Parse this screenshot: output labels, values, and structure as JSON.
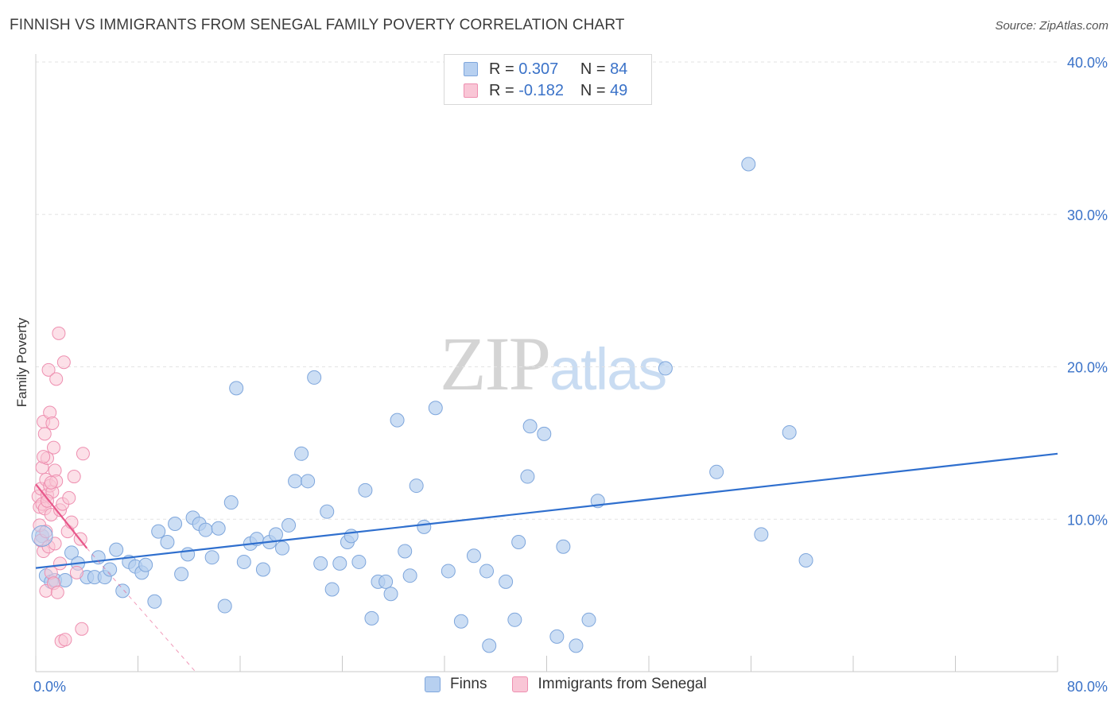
{
  "header": {
    "title": "FINNISH VS IMMIGRANTS FROM SENEGAL FAMILY POVERTY CORRELATION CHART",
    "source": "Source: ZipAtlas.com"
  },
  "watermark": {
    "zip": "ZIP",
    "atlas": "atlas"
  },
  "legend": {
    "rows": [
      {
        "r_label": "R =",
        "r_value": "0.307",
        "n_label": "N =",
        "n_value": "84"
      },
      {
        "r_label": "R =",
        "r_value": "-0.182",
        "n_label": "N =",
        "n_value": "49"
      }
    ]
  },
  "bottom_legend": {
    "finns": "Finns",
    "senegal": "Immigrants from Senegal"
  },
  "colors": {
    "finns_fill": "#b7d0f0",
    "finns_stroke": "#7ea6dc",
    "finns_line": "#2f6fce",
    "senegal_fill": "#f9c6d6",
    "senegal_stroke": "#ee8fb0",
    "senegal_line": "#e8578a",
    "grid": "#e3e3e3",
    "tick_label": "#3a72c8"
  },
  "chart_data": {
    "type": "scatter",
    "title": "FINNISH VS IMMIGRANTS FROM SENEGAL FAMILY POVERTY CORRELATION CHART",
    "xlabel": "",
    "ylabel": "Family Poverty",
    "xlim": [
      0,
      80
    ],
    "ylim": [
      0,
      40
    ],
    "x_tick_labels": [
      "0.0%",
      "80.0%"
    ],
    "y_ticks": [
      10,
      20,
      30,
      40
    ],
    "y_tick_labels": [
      "10.0%",
      "20.0%",
      "30.0%",
      "40.0%"
    ],
    "grid": true,
    "series": [
      {
        "name": "Finns",
        "r": 0.307,
        "n": 84,
        "trend": {
          "x0": 0,
          "y0": 6.8,
          "x1": 80,
          "y1": 14.3
        },
        "points": [
          [
            0.5,
            8.9
          ],
          [
            0.8,
            6.3
          ],
          [
            1.2,
            5.9
          ],
          [
            1.5,
            6.0
          ],
          [
            2.3,
            6.0
          ],
          [
            2.8,
            7.8
          ],
          [
            3.3,
            7.1
          ],
          [
            4.0,
            6.2
          ],
          [
            4.6,
            6.2
          ],
          [
            4.9,
            7.5
          ],
          [
            5.4,
            6.2
          ],
          [
            5.8,
            6.7
          ],
          [
            6.3,
            8.0
          ],
          [
            6.8,
            5.3
          ],
          [
            7.3,
            7.2
          ],
          [
            7.8,
            6.9
          ],
          [
            8.3,
            6.5
          ],
          [
            8.6,
            7.0
          ],
          [
            9.3,
            4.6
          ],
          [
            9.6,
            9.2
          ],
          [
            10.3,
            8.5
          ],
          [
            10.9,
            9.7
          ],
          [
            11.4,
            6.4
          ],
          [
            11.9,
            7.7
          ],
          [
            12.3,
            10.1
          ],
          [
            12.8,
            9.7
          ],
          [
            13.3,
            9.3
          ],
          [
            13.8,
            7.5
          ],
          [
            14.3,
            9.4
          ],
          [
            14.8,
            4.3
          ],
          [
            15.3,
            11.1
          ],
          [
            15.7,
            18.6
          ],
          [
            16.3,
            7.2
          ],
          [
            16.8,
            8.4
          ],
          [
            17.3,
            8.7
          ],
          [
            17.8,
            6.7
          ],
          [
            18.3,
            8.5
          ],
          [
            18.8,
            9.0
          ],
          [
            19.3,
            8.1
          ],
          [
            19.8,
            9.6
          ],
          [
            20.3,
            12.5
          ],
          [
            20.8,
            14.3
          ],
          [
            21.3,
            12.5
          ],
          [
            21.8,
            19.3
          ],
          [
            22.3,
            7.1
          ],
          [
            22.8,
            10.5
          ],
          [
            23.2,
            5.4
          ],
          [
            23.8,
            7.1
          ],
          [
            24.4,
            8.5
          ],
          [
            24.7,
            8.9
          ],
          [
            25.3,
            7.2
          ],
          [
            25.8,
            11.9
          ],
          [
            26.3,
            3.5
          ],
          [
            26.8,
            5.9
          ],
          [
            27.4,
            5.9
          ],
          [
            27.8,
            5.1
          ],
          [
            28.3,
            16.5
          ],
          [
            28.9,
            7.9
          ],
          [
            29.3,
            6.3
          ],
          [
            29.8,
            12.2
          ],
          [
            30.4,
            9.5
          ],
          [
            31.3,
            17.3
          ],
          [
            32.3,
            6.6
          ],
          [
            33.3,
            3.3
          ],
          [
            34.3,
            7.6
          ],
          [
            35.3,
            6.6
          ],
          [
            35.5,
            1.7
          ],
          [
            36.8,
            5.9
          ],
          [
            37.5,
            3.4
          ],
          [
            37.8,
            8.5
          ],
          [
            38.5,
            12.8
          ],
          [
            38.7,
            16.1
          ],
          [
            39.8,
            15.6
          ],
          [
            40.8,
            2.3
          ],
          [
            41.3,
            8.2
          ],
          [
            42.3,
            1.7
          ],
          [
            43.3,
            3.4
          ],
          [
            44.0,
            11.2
          ],
          [
            49.3,
            19.9
          ],
          [
            53.3,
            13.1
          ],
          [
            55.8,
            33.3
          ],
          [
            56.8,
            9.0
          ],
          [
            59.0,
            15.7
          ],
          [
            60.3,
            7.3
          ]
        ]
      },
      {
        "name": "Immigrants from Senegal",
        "r": -0.182,
        "n": 49,
        "trend": {
          "x0": 0,
          "y0": 12.3,
          "x1": 4.0,
          "y1": 8.1,
          "dash_x1": 12.5,
          "dash_y1": 0
        },
        "points": [
          [
            0.2,
            11.5
          ],
          [
            0.3,
            10.8
          ],
          [
            0.3,
            9.6
          ],
          [
            0.4,
            12.0
          ],
          [
            0.4,
            8.6
          ],
          [
            0.5,
            13.4
          ],
          [
            0.5,
            11.0
          ],
          [
            0.6,
            16.4
          ],
          [
            0.6,
            7.9
          ],
          [
            0.7,
            15.6
          ],
          [
            0.7,
            10.7
          ],
          [
            0.8,
            12.6
          ],
          [
            0.8,
            9.2
          ],
          [
            0.8,
            5.3
          ],
          [
            0.9,
            14.0
          ],
          [
            0.9,
            11.6
          ],
          [
            1.0,
            19.8
          ],
          [
            1.0,
            8.2
          ],
          [
            1.1,
            17.0
          ],
          [
            1.1,
            12.2
          ],
          [
            1.2,
            10.3
          ],
          [
            1.2,
            6.5
          ],
          [
            1.3,
            16.3
          ],
          [
            1.3,
            11.8
          ],
          [
            1.4,
            14.7
          ],
          [
            1.4,
            5.8
          ],
          [
            1.5,
            13.2
          ],
          [
            1.5,
            8.4
          ],
          [
            1.6,
            19.2
          ],
          [
            1.6,
            12.5
          ],
          [
            1.7,
            5.2
          ],
          [
            1.8,
            22.2
          ],
          [
            1.9,
            10.6
          ],
          [
            1.9,
            7.1
          ],
          [
            2.0,
            2.0
          ],
          [
            2.1,
            11.0
          ],
          [
            2.2,
            20.3
          ],
          [
            2.3,
            2.1
          ],
          [
            2.5,
            9.2
          ],
          [
            2.6,
            11.4
          ],
          [
            2.8,
            9.8
          ],
          [
            3.0,
            12.8
          ],
          [
            3.2,
            6.5
          ],
          [
            3.5,
            8.7
          ],
          [
            3.6,
            2.8
          ],
          [
            3.7,
            14.3
          ],
          [
            0.9,
            11.2
          ],
          [
            1.2,
            12.4
          ],
          [
            0.6,
            14.1
          ]
        ]
      }
    ]
  }
}
